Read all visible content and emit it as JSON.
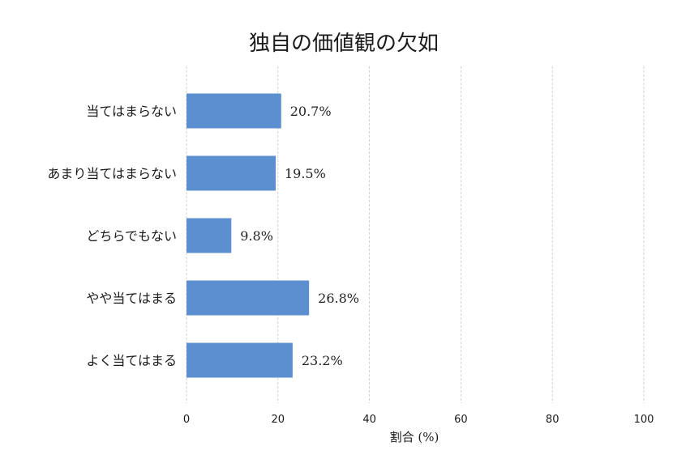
{
  "chart_data": {
    "type": "bar",
    "orientation": "horizontal",
    "title": "独自の価値観の欠如",
    "xlabel": "割合 (%)",
    "ylabel": "",
    "categories": [
      "当てはまらない",
      "あまり当てはまらない",
      "どちらでもない",
      "やや当てはまる",
      "よく当てはまる"
    ],
    "values": [
      20.7,
      19.5,
      9.8,
      26.8,
      23.2
    ],
    "value_labels": [
      "20.7%",
      "19.5%",
      "9.8%",
      "26.8%",
      "23.2%"
    ],
    "xlim": [
      0,
      100
    ],
    "xticks": [
      "0",
      "20",
      "40",
      "60",
      "80",
      "100"
    ],
    "bar_color": "#5b8fd0",
    "grid": "vertical dashed",
    "legend": "none"
  }
}
